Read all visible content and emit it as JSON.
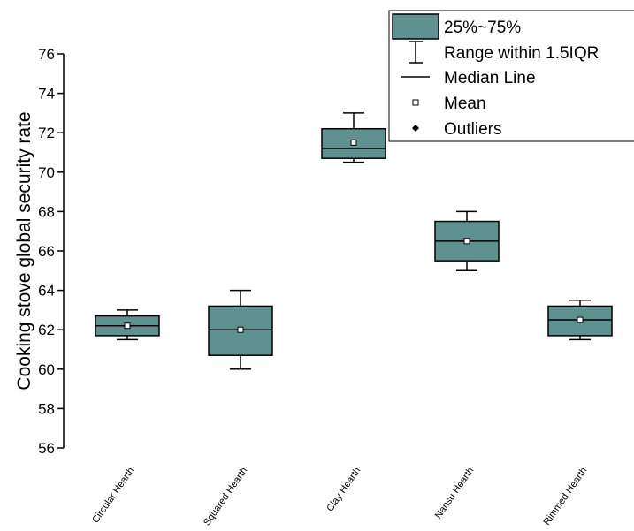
{
  "chart_data": {
    "type": "box",
    "title": "",
    "xlabel": "",
    "ylabel": "Cooking stove global security rate",
    "ylim": [
      56,
      76
    ],
    "yticks": [
      56,
      58,
      60,
      62,
      64,
      66,
      68,
      70,
      72,
      74,
      76
    ],
    "categories": [
      "Circular Hearth",
      "Squared Hearth",
      "Clay Hearth",
      "Nansu Hearth",
      "Rimmed  Hearth"
    ],
    "boxes": [
      {
        "whisker_low": 61.5,
        "q1": 61.7,
        "median": 62.2,
        "q3": 62.7,
        "whisker_high": 63.0,
        "mean": 62.2
      },
      {
        "whisker_low": 60.0,
        "q1": 60.7,
        "median": 62.0,
        "q3": 63.2,
        "whisker_high": 64.0,
        "mean": 62.0
      },
      {
        "whisker_low": 70.5,
        "q1": 70.7,
        "median": 71.2,
        "q3": 72.2,
        "whisker_high": 73.0,
        "mean": 71.5
      },
      {
        "whisker_low": 65.0,
        "q1": 65.5,
        "median": 66.5,
        "q3": 67.5,
        "whisker_high": 68.0,
        "mean": 66.5
      },
      {
        "whisker_low": 61.5,
        "q1": 61.7,
        "median": 62.5,
        "q3": 63.2,
        "whisker_high": 63.5,
        "mean": 62.5
      }
    ],
    "legend": {
      "position": "top-right",
      "items": [
        {
          "symbol": "box",
          "label": "25%~75%"
        },
        {
          "symbol": "whisker",
          "label": "Range within 1.5IQR"
        },
        {
          "symbol": "line",
          "label": "Median Line"
        },
        {
          "symbol": "square",
          "label": "Mean"
        },
        {
          "symbol": "diamond",
          "label": "Outliers"
        }
      ]
    },
    "colors": {
      "box_fill": "#5f9190",
      "stroke": "#000000"
    },
    "grid": false
  }
}
